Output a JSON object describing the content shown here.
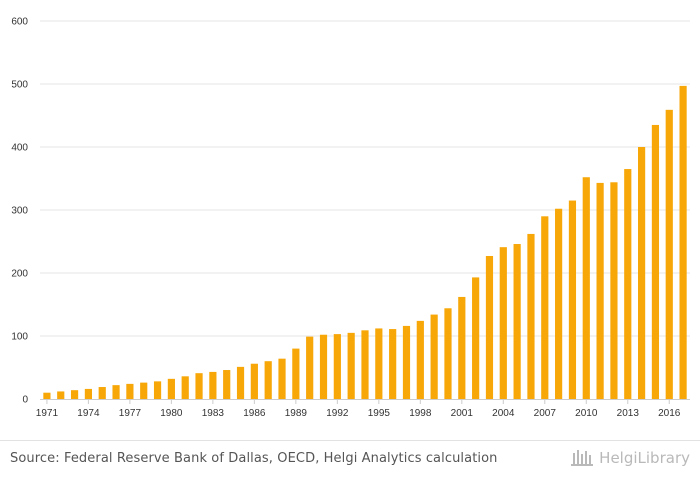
{
  "chart_data": {
    "type": "bar",
    "title": "",
    "xlabel": "",
    "ylabel": "",
    "ylim": [
      0,
      600
    ],
    "yticks": [
      0,
      100,
      200,
      300,
      400,
      500,
      600
    ],
    "grid": true,
    "color": "#f7a708",
    "categories": [
      "1971",
      "1972",
      "1973",
      "1974",
      "1975",
      "1976",
      "1977",
      "1978",
      "1979",
      "1980",
      "1981",
      "1982",
      "1983",
      "1984",
      "1985",
      "1986",
      "1987",
      "1988",
      "1989",
      "1990",
      "1991",
      "1992",
      "1993",
      "1994",
      "1995",
      "1996",
      "1997",
      "1998",
      "1999",
      "2000",
      "2001",
      "2002",
      "2003",
      "2004",
      "2005",
      "2006",
      "2007",
      "2008",
      "2009",
      "2010",
      "2011",
      "2012",
      "2013",
      "2014",
      "2015",
      "2016",
      "2017"
    ],
    "xtick_labels": [
      "1971",
      "1974",
      "1977",
      "1980",
      "1983",
      "1986",
      "1989",
      "1992",
      "1995",
      "1998",
      "2001",
      "2004",
      "2007",
      "2010",
      "2013",
      "2016"
    ],
    "values": [
      10,
      12,
      14,
      16,
      19,
      22,
      24,
      26,
      28,
      32,
      36,
      41,
      43,
      46,
      51,
      56,
      60,
      64,
      80,
      99,
      102,
      103,
      105,
      109,
      112,
      111,
      116,
      124,
      134,
      144,
      162,
      193,
      227,
      241,
      246,
      262,
      290,
      302,
      315,
      352,
      343,
      344,
      365,
      400,
      435,
      459,
      497
    ]
  },
  "footer": {
    "source": "Source: Federal Reserve Bank of Dallas, OECD, Helgi Analytics calculation",
    "brand": "HelgiLibrary"
  }
}
